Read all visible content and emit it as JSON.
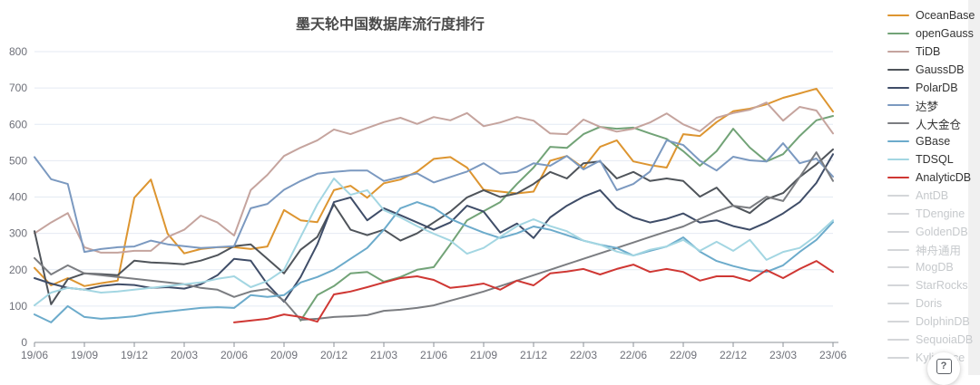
{
  "title": "墨天轮中国数据库流行度排行",
  "help": {
    "label": "?"
  },
  "chart_data": {
    "type": "line",
    "title": "墨天轮中国数据库流行度排行",
    "xlabel": "",
    "ylabel": "",
    "ylim": [
      0,
      800
    ],
    "y_tick_step": 100,
    "grid": true,
    "legend_position": "right",
    "x_tick_every": 3,
    "x": [
      "19/06",
      "19/07",
      "19/08",
      "19/09",
      "19/10",
      "19/11",
      "19/12",
      "20/01",
      "20/02",
      "20/03",
      "20/04",
      "20/05",
      "20/06",
      "20/07",
      "20/08",
      "20/09",
      "20/10",
      "20/11",
      "20/12",
      "21/01",
      "21/02",
      "21/03",
      "21/04",
      "21/05",
      "21/06",
      "21/07",
      "21/08",
      "21/09",
      "21/10",
      "21/11",
      "21/12",
      "22/01",
      "22/02",
      "22/03",
      "22/04",
      "22/05",
      "22/06",
      "22/07",
      "22/08",
      "22/09",
      "22/10",
      "22/11",
      "22/12",
      "23/01",
      "23/02",
      "23/03",
      "23/04",
      "23/05",
      "23/06"
    ],
    "series": [
      {
        "name": "OceanBase",
        "color": "#dd9530",
        "values": [
          205,
          157,
          177,
          155,
          163,
          170,
          398,
          448,
          299,
          245,
          257,
          262,
          262,
          257,
          264,
          364,
          336,
          331,
          419,
          431,
          398,
          438,
          448,
          470,
          505,
          510,
          481,
          420,
          415,
          410,
          415,
          500,
          513,
          480,
          538,
          556,
          498,
          488,
          481,
          573,
          568,
          606,
          636,
          643,
          655,
          673,
          685,
          698,
          635
        ]
      },
      {
        "name": "openGauss",
        "color": "#72a377",
        "values": [
          null,
          null,
          null,
          null,
          null,
          null,
          null,
          null,
          null,
          null,
          null,
          null,
          null,
          null,
          null,
          null,
          60,
          130,
          155,
          190,
          194,
          167,
          180,
          200,
          207,
          270,
          336,
          361,
          386,
          436,
          481,
          538,
          535,
          573,
          593,
          588,
          591,
          575,
          560,
          526,
          486,
          526,
          588,
          536,
          498,
          518,
          568,
          611,
          623
        ]
      },
      {
        "name": "TiDB",
        "color": "#c5a49e",
        "values": [
          300,
          330,
          356,
          262,
          247,
          247,
          252,
          252,
          290,
          310,
          349,
          330,
          294,
          419,
          461,
          513,
          536,
          556,
          586,
          573,
          590,
          606,
          618,
          601,
          620,
          611,
          631,
          595,
          605,
          620,
          610,
          575,
          573,
          613,
          593,
          580,
          588,
          605,
          630,
          600,
          581,
          618,
          631,
          640,
          660,
          610,
          648,
          638,
          575
        ]
      },
      {
        "name": "GaussDB",
        "color": "#4f545a",
        "values": [
          306,
          105,
          174,
          190,
          188,
          185,
          225,
          220,
          218,
          215,
          225,
          240,
          265,
          270,
          230,
          190,
          255,
          290,
          380,
          310,
          295,
          310,
          280,
          300,
          330,
          360,
          399,
          419,
          400,
          410,
          436,
          469,
          451,
          493,
          498,
          451,
          469,
          444,
          451,
          444,
          401,
          426,
          376,
          356,
          394,
          411,
          455,
          490,
          531
        ]
      },
      {
        "name": "PolarDB",
        "color": "#3f4d68",
        "values": [
          177,
          162,
          150,
          145,
          155,
          160,
          158,
          150,
          152,
          148,
          160,
          185,
          230,
          225,
          160,
          112,
          180,
          270,
          386,
          399,
          336,
          369,
          350,
          330,
          310,
          330,
          376,
          360,
          302,
          327,
          287,
          344,
          376,
          401,
          419,
          369,
          344,
          330,
          340,
          355,
          330,
          336,
          320,
          310,
          330,
          355,
          386,
          439,
          518
        ]
      },
      {
        "name": "达梦",
        "color": "#7b99c0",
        "values": [
          510,
          449,
          436,
          249,
          257,
          262,
          264,
          280,
          270,
          265,
          260,
          262,
          265,
          369,
          381,
          420,
          444,
          464,
          469,
          473,
          473,
          444,
          455,
          465,
          440,
          455,
          470,
          493,
          464,
          469,
          493,
          486,
          513,
          476,
          500,
          419,
          436,
          470,
          556,
          543,
          500,
          473,
          511,
          501,
          498,
          548,
          493,
          506,
          456
        ]
      },
      {
        "name": "人大金仓",
        "color": "#7b7d81",
        "values": [
          232,
          187,
          212,
          190,
          185,
          180,
          175,
          170,
          165,
          160,
          150,
          145,
          125,
          140,
          147,
          115,
          62,
          65,
          70,
          72,
          75,
          87,
          90,
          95,
          102,
          115,
          127,
          140,
          155,
          170,
          185,
          200,
          215,
          230,
          245,
          260,
          275,
          290,
          305,
          319,
          340,
          360,
          376,
          370,
          401,
          389,
          455,
          523,
          444
        ]
      },
      {
        "name": "GBase",
        "color": "#6cabcb",
        "values": [
          77,
          55,
          100,
          70,
          65,
          68,
          72,
          80,
          85,
          90,
          95,
          97,
          95,
          130,
          125,
          130,
          165,
          180,
          200,
          230,
          260,
          310,
          369,
          386,
          370,
          340,
          320,
          302,
          287,
          300,
          319,
          310,
          295,
          280,
          269,
          260,
          239,
          252,
          264,
          289,
          250,
          224,
          210,
          199,
          194,
          212,
          249,
          282,
          331
        ]
      },
      {
        "name": "TDSQL",
        "color": "#a3d6e2",
        "values": [
          102,
          137,
          150,
          145,
          137,
          140,
          145,
          150,
          155,
          160,
          165,
          175,
          182,
          152,
          169,
          200,
          290,
          380,
          451,
          406,
          419,
          364,
          344,
          320,
          299,
          280,
          244,
          260,
          290,
          320,
          339,
          320,
          306,
          280,
          269,
          250,
          239,
          255,
          264,
          282,
          252,
          277,
          252,
          282,
          227,
          249,
          260,
          294,
          336
        ]
      },
      {
        "name": "AnalyticDB",
        "color": "#cf3733",
        "values": [
          null,
          null,
          null,
          null,
          null,
          null,
          null,
          null,
          null,
          null,
          null,
          null,
          55,
          60,
          65,
          77,
          70,
          57,
          132,
          140,
          152,
          165,
          177,
          182,
          172,
          150,
          155,
          162,
          145,
          170,
          157,
          190,
          195,
          202,
          187,
          202,
          214,
          194,
          202,
          194,
          170,
          182,
          182,
          169,
          199,
          177,
          202,
          224,
          194
        ]
      }
    ],
    "legend": [
      {
        "name": "OceanBase",
        "active": true
      },
      {
        "name": "openGauss",
        "active": true
      },
      {
        "name": "TiDB",
        "active": true
      },
      {
        "name": "GaussDB",
        "active": true
      },
      {
        "name": "PolarDB",
        "active": true
      },
      {
        "name": "达梦",
        "active": true
      },
      {
        "name": "人大金仓",
        "active": true
      },
      {
        "name": "GBase",
        "active": true
      },
      {
        "name": "TDSQL",
        "active": true
      },
      {
        "name": "AnalyticDB",
        "active": true
      },
      {
        "name": "AntDB",
        "active": false
      },
      {
        "name": "TDengine",
        "active": false
      },
      {
        "name": "GoldenDB",
        "active": false
      },
      {
        "name": "神舟通用",
        "active": false
      },
      {
        "name": "MogDB",
        "active": false
      },
      {
        "name": "StarRocks",
        "active": false
      },
      {
        "name": "Doris",
        "active": false
      },
      {
        "name": "DolphinDB",
        "active": false
      },
      {
        "name": "SequoiaDB",
        "active": false
      },
      {
        "name": "Kyligence",
        "active": false
      }
    ],
    "colors": {
      "disabled_line": "#d4d6d9",
      "grid_line": "#e4eaf3",
      "axis_line": "#8b9097",
      "tick_label": "#6e7079",
      "title_text": "#4a4a4a"
    }
  }
}
